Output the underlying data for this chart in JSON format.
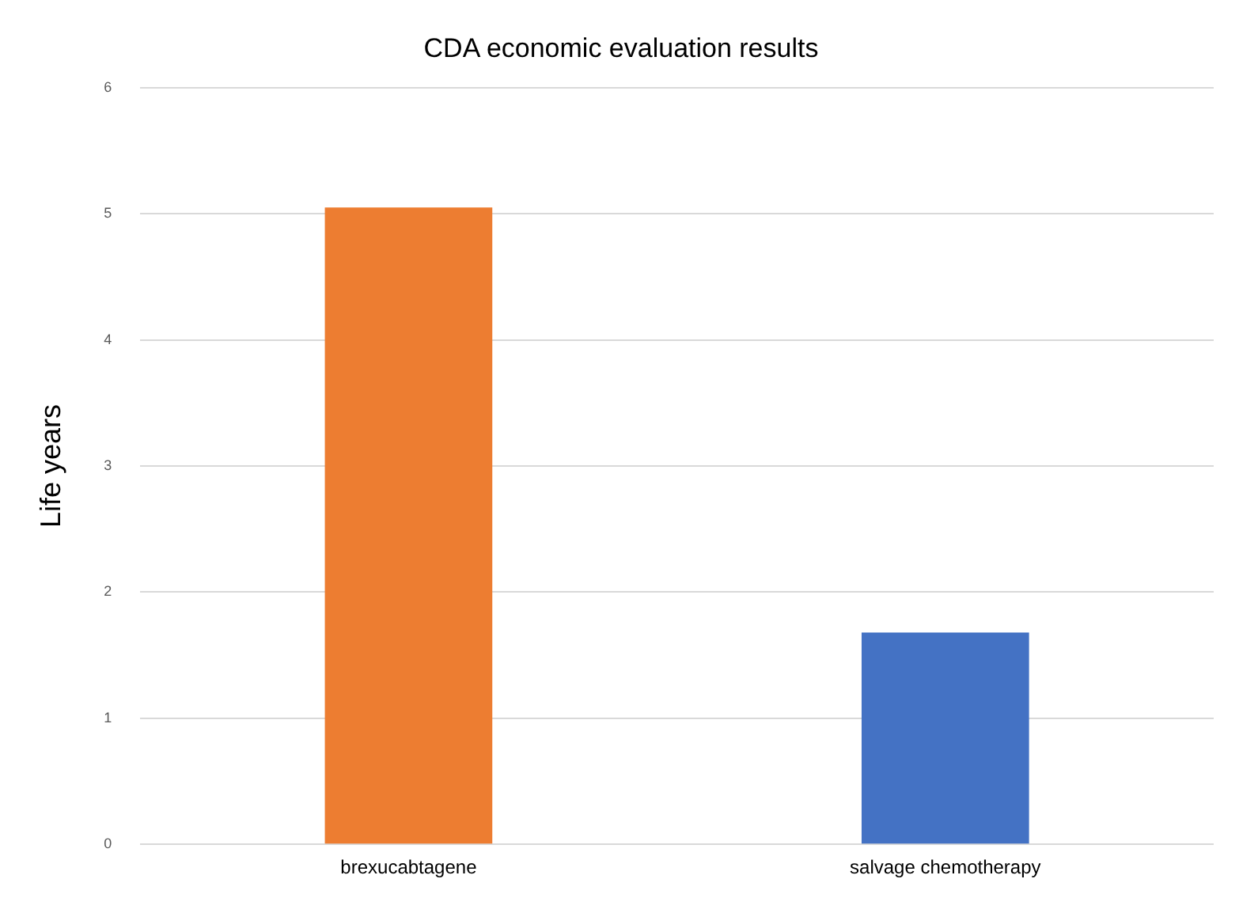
{
  "chart_data": {
    "type": "bar",
    "title": "CDA economic evaluation results",
    "ylabel": "Life years",
    "categories": [
      "brexucabtagene",
      "salvage chemotherapy"
    ],
    "values": [
      5.05,
      1.68
    ],
    "colors": [
      "#ed7d31",
      "#4472c4"
    ],
    "ylim": [
      0,
      6
    ],
    "yticks": [
      0,
      1,
      2,
      3,
      4,
      5,
      6
    ],
    "grid": "y",
    "legend": false
  }
}
